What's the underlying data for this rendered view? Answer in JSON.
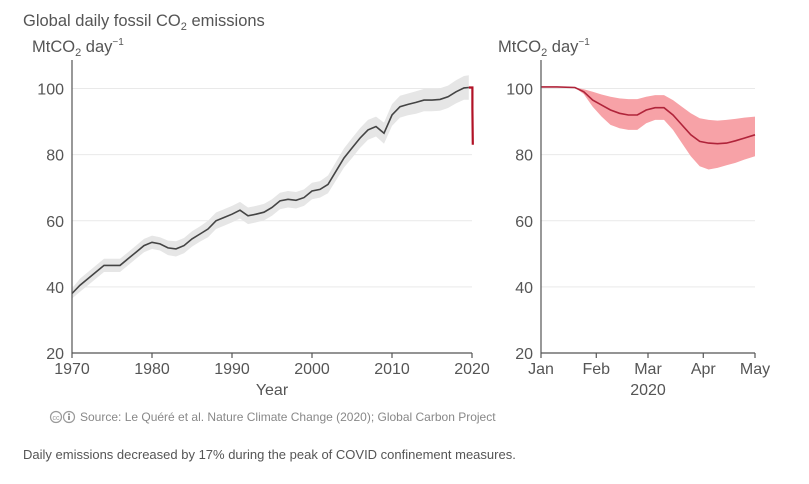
{
  "figure": {
    "title": "Global daily fossil CO",
    "title_sub": "2",
    "title_end": " emissions",
    "unit_main": "MtCO",
    "unit_sub": "2",
    "unit_end": " day",
    "unit_sup": "−1",
    "source_icons": "cc-by-icons",
    "source": "Source: Le Quéré et al. Nature Climate Change (2020); Global Carbon Project",
    "caption": "Daily emissions decreased by 17% during the peak of COVID confinement measures."
  },
  "chart_data": [
    {
      "type": "line",
      "xlabel": "Year",
      "ylabel": "MtCO2 day−1",
      "xlim": [
        1970,
        2020
      ],
      "ylim": [
        20,
        105
      ],
      "xticks": [
        1970,
        1980,
        1990,
        2000,
        2010,
        2020
      ],
      "xtick_labels": [
        "1970",
        "1980",
        "1990",
        "2000",
        "2010",
        "2020"
      ],
      "yticks": [
        20,
        40,
        60,
        80,
        100
      ],
      "ytick_labels": [
        "20",
        "40",
        "60",
        "80",
        "100"
      ],
      "grid": "horizontal",
      "line_color": "#444444",
      "band_color": "#e6e6e6",
      "highlight_color": "#b11226",
      "series": [
        {
          "x": [
            1970,
            1971,
            1972,
            1973,
            1974,
            1975,
            1976,
            1977,
            1978,
            1979,
            1980,
            1981,
            1982,
            1983,
            1984,
            1985,
            1986,
            1987,
            1988,
            1989,
            1990,
            1991,
            1992,
            1993,
            1994,
            1995,
            1996,
            1997,
            1998,
            1999,
            2000,
            2001,
            2002,
            2003,
            2004,
            2005,
            2006,
            2007,
            2008,
            2009,
            2010,
            2011,
            2012,
            2013,
            2014,
            2015,
            2016,
            2017,
            2018,
            2019,
            2019.6
          ],
          "y": [
            38,
            40.5,
            42.5,
            44.5,
            46.5,
            46.5,
            46.5,
            48.5,
            50.5,
            52.5,
            53.5,
            53,
            51.8,
            51.5,
            52.5,
            54.5,
            56,
            57.5,
            60,
            61,
            62,
            63.2,
            61.5,
            62,
            62.6,
            64,
            66,
            66.5,
            66.2,
            67,
            69,
            69.5,
            71,
            75,
            79,
            82,
            85,
            87.5,
            88.5,
            86.5,
            92,
            94.5,
            95.2,
            95.8,
            96.5,
            96.5,
            96.7,
            97.5,
            99,
            100.2,
            100.3
          ],
          "upper": [
            39.5,
            42.5,
            44.5,
            46.5,
            48.5,
            48.5,
            48.5,
            50.5,
            52.5,
            54.5,
            55.5,
            55,
            54,
            53.8,
            54.8,
            56.8,
            58.3,
            60,
            62.5,
            63.5,
            64.5,
            65.7,
            64,
            64.5,
            65.1,
            66.5,
            68.5,
            69,
            68.7,
            69.5,
            71.5,
            72,
            73.7,
            77.8,
            81.9,
            85,
            88,
            90.5,
            91.5,
            89.7,
            95.3,
            97.8,
            98.5,
            99.2,
            99.9,
            99.9,
            100.1,
            100.9,
            102.5,
            103.8,
            104
          ],
          "lower": [
            36.5,
            38.5,
            40.5,
            42.5,
            44.5,
            44.5,
            44.5,
            46.5,
            48.5,
            50.5,
            51.5,
            51,
            49.6,
            49.2,
            50.2,
            52.2,
            53.7,
            55,
            57.5,
            58.5,
            59.5,
            60.7,
            59,
            59.5,
            60.1,
            61.5,
            63.5,
            64,
            63.7,
            64.5,
            66.5,
            67,
            68.3,
            72.2,
            76.1,
            79,
            82,
            84.5,
            85.5,
            83.3,
            88.7,
            91.2,
            91.9,
            92.4,
            93.1,
            93.1,
            93.3,
            94.1,
            95.5,
            96.6,
            96.6
          ]
        },
        {
          "name": "2020",
          "x": [
            2019.6,
            2020.05,
            2020.05,
            2020.1
          ],
          "y": [
            100.3,
            100.3,
            94,
            83
          ]
        }
      ]
    },
    {
      "type": "area",
      "xlabel": "2020",
      "ylabel": "MtCO2 day−1",
      "xlim": [
        1,
        121
      ],
      "ylim": [
        20,
        105
      ],
      "xticks": [
        1,
        32,
        61,
        92,
        122
      ],
      "xtick_labels": [
        "Jan",
        "Feb",
        "Mar",
        "Apr",
        "May"
      ],
      "yticks": [
        20,
        40,
        60,
        80,
        100
      ],
      "ytick_labels": [
        "20",
        "40",
        "60",
        "80",
        "100"
      ],
      "grid": "horizontal",
      "line_color": "#b0243a",
      "band_color": "#f7a2a7",
      "series": [
        {
          "x": [
            1,
            10,
            20,
            25,
            30,
            35,
            40,
            45,
            50,
            55,
            60,
            65,
            70,
            75,
            80,
            85,
            90,
            95,
            100,
            105,
            110,
            115,
            121
          ],
          "y": [
            100.5,
            100.5,
            100.3,
            99,
            96.5,
            95,
            93.5,
            92.5,
            92,
            92,
            93.5,
            94.2,
            94.2,
            92,
            89,
            86,
            84,
            83.5,
            83.3,
            83.5,
            84.2,
            85,
            86
          ],
          "upper": [
            100.5,
            100.5,
            100.3,
            99.8,
            99,
            98.2,
            97.5,
            97,
            96.8,
            96.8,
            97.5,
            98,
            98,
            96.5,
            94.5,
            92.5,
            91,
            90.5,
            90.3,
            90.5,
            90.8,
            91.2,
            91.5
          ],
          "lower": [
            100.5,
            100.5,
            100.3,
            98.3,
            94.5,
            91.5,
            89,
            88,
            87.5,
            87.5,
            89.5,
            90.5,
            90.5,
            87.5,
            83.5,
            79.5,
            76.5,
            75.5,
            76,
            76.8,
            77.5,
            78.5,
            79.5
          ]
        }
      ]
    }
  ]
}
